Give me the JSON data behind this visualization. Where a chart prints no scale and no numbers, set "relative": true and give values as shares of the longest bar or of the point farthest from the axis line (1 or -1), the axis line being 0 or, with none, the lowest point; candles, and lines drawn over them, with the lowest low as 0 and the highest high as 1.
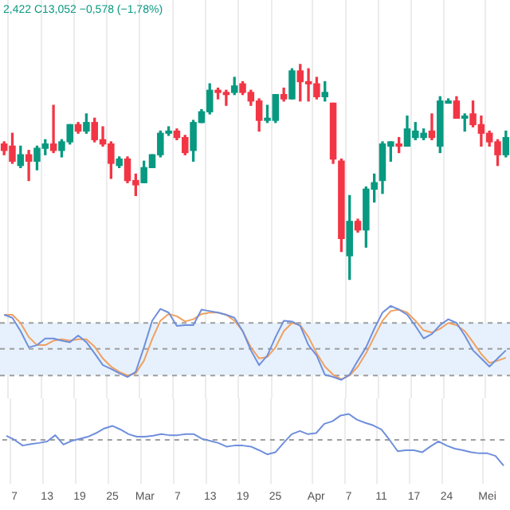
{
  "chart_data": [
    {
      "type": "candlestick",
      "relative": true,
      "tick_labels": false,
      "grid": "x",
      "legend": false,
      "annotations": [
        "2,422 C13,052 −0,578 (−1,78%)"
      ],
      "categories": [
        null,
        null,
        null,
        null,
        null,
        null,
        null,
        null,
        null,
        null,
        null,
        null,
        null,
        null,
        null,
        null,
        null,
        null,
        null,
        null,
        null,
        null,
        null,
        null,
        null,
        null,
        null,
        null,
        null,
        null,
        null,
        null,
        null,
        null,
        null,
        null,
        null,
        null,
        null,
        null,
        null,
        null,
        null,
        null,
        null,
        null,
        null,
        null,
        null,
        null,
        null,
        null,
        null,
        null,
        null,
        null,
        null,
        null,
        null,
        null,
        null,
        null
      ],
      "ohlc": [
        [
          0.63,
          0.64,
          0.58,
          0.6
        ],
        [
          0.62,
          0.68,
          0.54,
          0.55
        ],
        [
          0.53,
          0.62,
          0.52,
          0.58
        ],
        [
          0.58,
          0.6,
          0.46,
          0.55
        ],
        [
          0.55,
          0.62,
          0.51,
          0.61
        ],
        [
          0.61,
          0.65,
          0.58,
          0.63
        ],
        [
          0.63,
          0.81,
          0.59,
          0.6
        ],
        [
          0.6,
          0.65,
          0.57,
          0.64
        ],
        [
          0.64,
          0.72,
          0.63,
          0.72
        ],
        [
          0.72,
          0.73,
          0.68,
          0.69
        ],
        [
          0.69,
          0.77,
          0.68,
          0.73
        ],
        [
          0.73,
          0.75,
          0.64,
          0.65
        ],
        [
          0.65,
          0.71,
          0.62,
          0.63
        ],
        [
          0.63,
          0.64,
          0.47,
          0.54
        ],
        [
          0.53,
          0.57,
          0.52,
          0.56
        ],
        [
          0.56,
          0.57,
          0.45,
          0.46
        ],
        [
          0.46,
          0.49,
          0.39,
          0.44
        ],
        [
          0.45,
          0.55,
          0.45,
          0.52
        ],
        [
          0.52,
          0.58,
          0.52,
          0.58
        ],
        [
          0.58,
          0.69,
          0.57,
          0.68
        ],
        [
          0.68,
          0.71,
          0.67,
          0.69
        ],
        [
          0.69,
          0.7,
          0.65,
          0.66
        ],
        [
          0.66,
          0.67,
          0.58,
          0.59
        ],
        [
          0.6,
          0.74,
          0.55,
          0.73
        ],
        [
          0.73,
          0.79,
          0.73,
          0.78
        ],
        [
          0.78,
          0.91,
          0.77,
          0.88
        ],
        [
          0.88,
          0.89,
          0.84,
          0.87
        ],
        [
          0.87,
          0.88,
          0.81,
          0.86
        ],
        [
          0.87,
          0.94,
          0.86,
          0.9
        ],
        [
          0.91,
          0.92,
          0.86,
          0.87
        ],
        [
          0.87,
          0.88,
          0.81,
          0.83
        ],
        [
          0.83,
          0.84,
          0.69,
          0.74
        ],
        [
          0.74,
          0.81,
          0.73,
          0.75
        ],
        [
          0.74,
          0.86,
          0.73,
          0.86
        ],
        [
          0.86,
          0.89,
          0.83,
          0.84
        ],
        [
          0.84,
          0.98,
          0.84,
          0.97
        ],
        [
          0.97,
          1,
          0.83,
          0.92
        ],
        [
          0.92,
          0.98,
          0.83,
          0.91
        ],
        [
          0.91,
          0.94,
          0.84,
          0.85
        ],
        [
          0.85,
          0.92,
          0.83,
          0.87
        ],
        [
          0.82,
          0.82,
          0.54,
          0.56
        ],
        [
          0.55,
          0.56,
          0.13,
          0.19
        ],
        [
          0.11,
          0.39,
          0,
          0.27
        ],
        [
          0.27,
          0.28,
          0.22,
          0.23
        ],
        [
          0.23,
          0.43,
          0.15,
          0.42
        ],
        [
          0.42,
          0.49,
          0.36,
          0.45
        ],
        [
          0.46,
          0.64,
          0.4,
          0.63
        ],
        [
          0.62,
          0.64,
          0.55,
          0.64
        ],
        [
          0.63,
          0.66,
          0.59,
          0.62
        ],
        [
          0.62,
          0.76,
          0.62,
          0.7
        ],
        [
          0.66,
          0.73,
          0.65,
          0.69
        ],
        [
          0.66,
          0.7,
          0.65,
          0.68
        ],
        [
          0.69,
          0.77,
          0.65,
          0.66
        ],
        [
          0.62,
          0.85,
          0.59,
          0.83
        ],
        [
          0.82,
          0.84,
          0.82,
          0.83
        ],
        [
          0.83,
          0.85,
          0.75,
          0.75
        ],
        [
          0.75,
          0.77,
          0.69,
          0.76
        ],
        [
          0.77,
          0.83,
          0.71,
          0.72
        ],
        [
          0.72,
          0.76,
          0.62,
          0.68
        ],
        [
          0.68,
          0.69,
          0.62,
          0.64
        ],
        [
          0.64,
          0.65,
          0.53,
          0.58
        ],
        [
          0.58,
          0.69,
          0.57,
          0.66
        ]
      ],
      "colors": [
        "#f23645",
        "#f23645",
        "#089981",
        "#f23645",
        "#089981",
        "#089981",
        "#f23645",
        "#089981",
        "#089981",
        "#f23645",
        "#089981",
        "#f23645",
        "#f23645",
        "#f23645",
        "#089981",
        "#f23645",
        "#f23645",
        "#089981",
        "#089981",
        "#089981",
        "#089981",
        "#f23645",
        "#f23645",
        "#089981",
        "#089981",
        "#089981",
        "#f23645",
        "#f23645",
        "#089981",
        "#f23645",
        "#f23645",
        "#f23645",
        "#089981",
        "#089981",
        "#f23645",
        "#089981",
        "#f23645",
        "#f23645",
        "#f23645",
        "#089981",
        "#f23645",
        "#f23645",
        "#089981",
        "#f23645",
        "#089981",
        "#089981",
        "#089981",
        "#089981",
        "#f23645",
        "#089981",
        "#089981",
        "#089981",
        "#f23645",
        "#089981",
        "#089981",
        "#f23645",
        "#089981",
        "#f23645",
        "#f23645",
        "#f23645",
        "#f23645",
        "#089981"
      ]
    },
    {
      "type": "line",
      "relative": true,
      "tick_labels": false,
      "grid": "x",
      "legend": false,
      "marker": "none",
      "categories": [
        null,
        null,
        null,
        null,
        null,
        null,
        null,
        null,
        null,
        null,
        null,
        null,
        null,
        null,
        null,
        null,
        null,
        null,
        null,
        null,
        null,
        null,
        null,
        null,
        null,
        null,
        null,
        null,
        null,
        null,
        null,
        null,
        null,
        null,
        null,
        null,
        null,
        null,
        null,
        null,
        null,
        null,
        null,
        null,
        null,
        null,
        null,
        null,
        null,
        null,
        null,
        null,
        null,
        null,
        null,
        null,
        null,
        null,
        null,
        null,
        null,
        null
      ],
      "series": [
        {
          "color": "#6f8fdc",
          "values": [
            0.88,
            0.84,
            0.66,
            0.44,
            0.47,
            0.56,
            0.56,
            0.53,
            0.51,
            0.6,
            0.51,
            0.36,
            0.2,
            0.15,
            0.09,
            0.04,
            0.11,
            0.44,
            0.8,
            0.96,
            0.91,
            0.73,
            0.74,
            0.74,
            0.95,
            0.93,
            0.91,
            0.88,
            0.84,
            0.66,
            0.4,
            0.2,
            0.33,
            0.58,
            0.8,
            0.79,
            0.73,
            0.47,
            0.33,
            0.07,
            0.04,
            0,
            0.07,
            0.26,
            0.44,
            0.69,
            0.91,
            1,
            0.95,
            0.88,
            0.73,
            0.56,
            0.62,
            0.74,
            0.82,
            0.77,
            0.6,
            0.4,
            0.29,
            0.18,
            0.29,
            0.4
          ]
        },
        {
          "color": "#f0a060",
          "values": [
            0.88,
            0.88,
            0.77,
            0.58,
            0.47,
            0.47,
            0.53,
            0.55,
            0.53,
            0.55,
            0.55,
            0.45,
            0.29,
            0.18,
            0.11,
            0.06,
            0.09,
            0.26,
            0.55,
            0.8,
            0.89,
            0.86,
            0.79,
            0.82,
            0.89,
            0.91,
            0.91,
            0.88,
            0.8,
            0.66,
            0.44,
            0.29,
            0.31,
            0.44,
            0.66,
            0.77,
            0.74,
            0.58,
            0.36,
            0.18,
            0.07,
            0.01,
            0.06,
            0.18,
            0.36,
            0.58,
            0.8,
            0.93,
            0.95,
            0.91,
            0.8,
            0.67,
            0.64,
            0.69,
            0.77,
            0.74,
            0.66,
            0.51,
            0.35,
            0.23,
            0.26,
            0.3
          ]
        }
      ],
      "bands": [
        {
          "axis": "y",
          "from": 0.06,
          "to": 0.77,
          "color": "#e6f1fd"
        }
      ],
      "ref_lines": [
        {
          "axis": "y",
          "value": 0.06,
          "color": "#9e9e9e",
          "line_style": "dashed"
        },
        {
          "axis": "y",
          "value": 0.42,
          "color": "#9e9e9e",
          "line_style": "dashed"
        },
        {
          "axis": "y",
          "value": 0.77,
          "color": "#9e9e9e",
          "line_style": "dashed"
        }
      ]
    },
    {
      "type": "line",
      "relative": true,
      "tick_labels": "x",
      "grid": "x",
      "legend": false,
      "marker": "none",
      "categories": [
        null,
        "7",
        null,
        null,
        null,
        "13",
        null,
        null,
        null,
        "19",
        null,
        null,
        null,
        "25",
        null,
        null,
        null,
        "Mar",
        null,
        null,
        null,
        "7",
        null,
        null,
        null,
        "13",
        null,
        null,
        null,
        "19",
        null,
        null,
        null,
        "25",
        null,
        null,
        null,
        null,
        "Apr",
        null,
        null,
        null,
        "7",
        null,
        null,
        null,
        "11",
        null,
        null,
        null,
        "17",
        null,
        null,
        null,
        "24",
        null,
        null,
        null,
        null,
        "Mei",
        null,
        null
      ],
      "series": [
        {
          "color": "#6f8fdc",
          "values": [
            0.58,
            0.5,
            0.39,
            0.42,
            0.44,
            0.47,
            0.59,
            0.41,
            0.48,
            0.52,
            0.56,
            0.63,
            0.72,
            0.77,
            0.7,
            0.61,
            0.56,
            0.56,
            0.58,
            0.61,
            0.59,
            0.59,
            0.61,
            0.61,
            0.52,
            0.48,
            0.44,
            0.37,
            0.39,
            0.39,
            0.37,
            0.3,
            0.22,
            0.26,
            0.44,
            0.61,
            0.67,
            0.61,
            0.63,
            0.81,
            0.86,
            0.97,
            1,
            0.89,
            0.83,
            0.78,
            0.7,
            0.5,
            0.28,
            0.3,
            0.3,
            0.26,
            0.37,
            0.47,
            0.39,
            0.33,
            0.3,
            0.26,
            0.24,
            0.24,
            0.19,
            0
          ]
        }
      ],
      "ref_lines": [
        {
          "axis": "y",
          "value": 0.5,
          "color": "#9e9e9e",
          "line_style": "dashed"
        }
      ]
    }
  ]
}
